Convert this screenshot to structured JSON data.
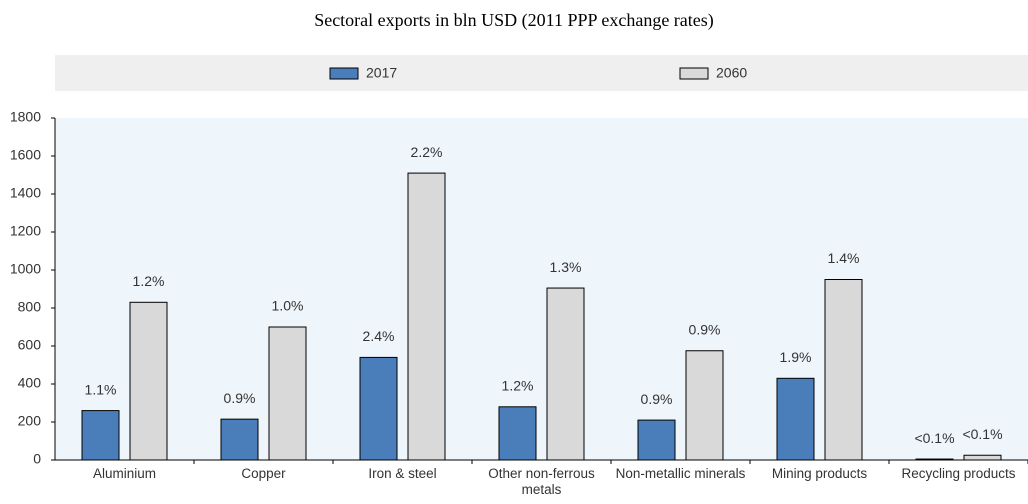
{
  "chart_data": {
    "type": "bar",
    "title": "Sectoral exports in bln USD (2011 PPP exchange rates)",
    "categories": [
      "Aluminium",
      "Copper",
      "Iron & steel",
      "Other non-ferrous metals",
      "Non-metallic minerals",
      "Mining products",
      "Recycling products"
    ],
    "series": [
      {
        "name": "2017",
        "color": "#4a7ebb",
        "values": [
          260,
          215,
          540,
          280,
          210,
          430,
          5
        ],
        "labels": [
          "1.1%",
          "0.9%",
          "2.4%",
          "1.2%",
          "0.9%",
          "1.9%",
          "<0.1%"
        ]
      },
      {
        "name": "2060",
        "color": "#d9d9d9",
        "values": [
          830,
          700,
          1510,
          905,
          575,
          950,
          25
        ],
        "labels": [
          "1.2%",
          "1.0%",
          "2.2%",
          "1.3%",
          "0.9%",
          "1.4%",
          "<0.1%"
        ]
      }
    ],
    "ylim": [
      0,
      1800
    ],
    "yticks": [
      0,
      200,
      400,
      600,
      800,
      1000,
      1200,
      1400,
      1600,
      1800
    ],
    "legend": "top"
  }
}
